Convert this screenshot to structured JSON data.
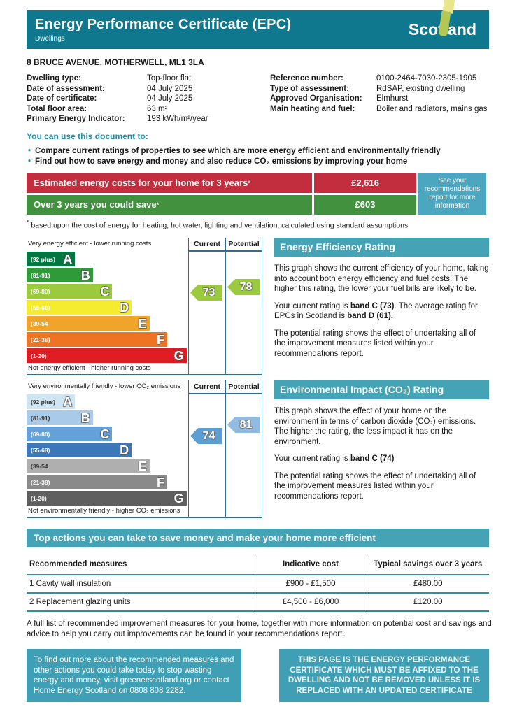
{
  "header": {
    "title": "Energy Performance Certificate (EPC)",
    "subtitle": "Dwellings",
    "logo": "Scotland",
    "band_color": "#10788E"
  },
  "address": "8 BRUCE AVENUE, MOTHERWELL, ML1 3LA",
  "details": {
    "left": [
      {
        "label": "Dwelling type:",
        "value": "Top-floor flat"
      },
      {
        "label": "Date of assessment:",
        "value": "04 July 2025"
      },
      {
        "label": "Date of certificate:",
        "value": "04 July 2025"
      },
      {
        "label": "Total floor area:",
        "value": "63 m²"
      },
      {
        "label": "Primary Energy Indicator:",
        "value": "193 kWh/m²/year"
      }
    ],
    "right": [
      {
        "label": "Reference number:",
        "value": "0100-2464-7030-2305-1905"
      },
      {
        "label": "Type of assessment:",
        "value": "RdSAP, existing dwelling"
      },
      {
        "label": "Approved Organisation:",
        "value": "Elmhurst"
      },
      {
        "label": "Main heating and fuel:",
        "value": "Boiler and radiators, mains gas"
      }
    ]
  },
  "intro": {
    "heading": "You can use this document to:",
    "bullet_mark": "•",
    "bullets": [
      "Compare current ratings of properties to see which are more energy efficient and environmentally friendly",
      "Find out how to save energy and money and also reduce CO₂ emissions by improving your home"
    ]
  },
  "costs": {
    "rows": [
      {
        "label": "Estimated energy costs for your home for 3 years",
        "asterisk": "*",
        "value": "£2,616",
        "color": "#C22E3E"
      },
      {
        "label": "Over 3 years you could save",
        "asterisk": "*",
        "value": "£603",
        "color": "#41913F"
      }
    ],
    "side_note": "See your recommendations report for more information",
    "side_note_color": "#4BA7BF",
    "footnote_mark": "*",
    "footnote": " based upon the cost of energy for heating, hot water, lighting and ventilation, calculated using standard assumptions"
  },
  "ee_chart": {
    "top_label": "Very energy efficient - lower running costs",
    "bottom_label": "Not energy efficient - higher running costs",
    "current_label": "Current",
    "potential_label": "Potential",
    "current_value": "73",
    "potential_value": "78",
    "current_band": "C",
    "potential_band": "C",
    "arrow_color": "#9BCA3E",
    "bands": [
      {
        "range": "(92 plus)",
        "letter": "A",
        "color": "#007640"
      },
      {
        "range": "(81-91)",
        "letter": "B",
        "color": "#2E9B38"
      },
      {
        "range": "(69-80)",
        "letter": "C",
        "color": "#9BCA3E"
      },
      {
        "range": "(55-68)",
        "letter": "D",
        "color": "#F5EC30"
      },
      {
        "range": "(39-54",
        "letter": "E",
        "color": "#F0A42C"
      },
      {
        "range": "(21-38)",
        "letter": "F",
        "color": "#EC7423"
      },
      {
        "range": "(1-20)",
        "letter": "G",
        "color": "#E01B22"
      }
    ]
  },
  "ee_panel": {
    "title": "Energy Efficiency Rating",
    "p1": "This graph shows the current efficiency of your home, taking into account both energy efficiency and fuel costs. The higher this rating, the lower your fuel bills are likely to be.",
    "p2_pre": "Your current rating is ",
    "p2_b1": "band C (73)",
    "p2_mid": ". The average rating for EPCs in Scotland is ",
    "p2_b2": "band D (61).",
    "p3": "The potential rating shows the effect of undertaking all of the improvement measures listed within your recommendations report."
  },
  "co2_chart": {
    "top_label": "Very environmentally friendly - lower CO₂ emissions",
    "bottom_label": "Not environmentally friendly - higher CO₂ emissions",
    "current_label": "Current",
    "potential_label": "Potential",
    "current_value": "74",
    "potential_value": "81",
    "current_band": "C",
    "potential_band": "B",
    "current_arrow_color": "#5B9FD3",
    "potential_arrow_color": "#92BBE0",
    "bands": [
      {
        "range": "(92 plus)",
        "letter": "A",
        "color": "#CFE5F2"
      },
      {
        "range": "(81-91)",
        "letter": "B",
        "color": "#A9CBEA"
      },
      {
        "range": "(69-80)",
        "letter": "C",
        "color": "#63A1D8"
      },
      {
        "range": "(55-68)",
        "letter": "D",
        "color": "#3C77BA"
      },
      {
        "range": "(39-54",
        "letter": "E",
        "color": "#AFAFAF"
      },
      {
        "range": "(21-38)",
        "letter": "F",
        "color": "#8A8A8A"
      },
      {
        "range": "(1-20)",
        "letter": "G",
        "color": "#5F5F5F"
      }
    ]
  },
  "co2_panel": {
    "title": "Environmental Impact (CO₂) Rating",
    "p1": "This graph shows the effect of your home on the environment in terms of carbon dioxide (CO₂) emissions. The higher the rating, the less impact it has on the environment.",
    "p2_pre": "Your current rating is ",
    "p2_b1": "band C (74)",
    "p3": "The potential rating shows the effect of undertaking all of the improvement measures listed within your recommendations report."
  },
  "top_actions": {
    "banner": "Top actions you can take to save money and make your home more efficient",
    "table": {
      "headers": [
        "Recommended measures",
        "Indicative cost",
        "Typical savings over 3 years"
      ],
      "rows": [
        {
          "measure": "1 Cavity wall insulation",
          "cost": "£900 - £1,500",
          "saving": "£480.00"
        },
        {
          "measure": "2 Replacement glazing units",
          "cost": "£4,500 - £6,000",
          "saving": "£120.00"
        }
      ]
    },
    "note": "A full list of recommended improvement measures for your home, together with more information on potential cost and savings and advice to help you carry out improvements can be found in your recommendations report."
  },
  "footer": {
    "left_box": "To find out more about the recommended measures and other actions you could take today to stop wasting energy and money, visit greenerscotland.org or contact Home Energy Scotland on 0808 808 2282.",
    "right_box": "THIS PAGE IS THE ENERGY PERFORMANCE CERTIFICATE WHICH MUST BE AFFIXED TO THE DWELLING AND NOT BE REMOVED UNLESS IT IS REPLACED WITH AN UPDATED CERTIFICATE",
    "box_color": "#3FA0B5"
  },
  "chart_data": [
    {
      "type": "bar",
      "title": "Energy Efficiency Rating",
      "categories": [
        "A (92 plus)",
        "B (81-91)",
        "C (69-80)",
        "D (55-68)",
        "E (39-54)",
        "F (21-38)",
        "G (1-20)"
      ],
      "current": 73,
      "current_band": "C",
      "potential": 78,
      "potential_band": "C",
      "scotland_average": 61,
      "scotland_average_band": "D"
    },
    {
      "type": "bar",
      "title": "Environmental Impact (CO2) Rating",
      "categories": [
        "A (92 plus)",
        "B (81-91)",
        "C (69-80)",
        "D (55-68)",
        "E (39-54)",
        "F (21-38)",
        "G (1-20)"
      ],
      "current": 74,
      "current_band": "C",
      "potential": 81,
      "potential_band": "B"
    }
  ]
}
